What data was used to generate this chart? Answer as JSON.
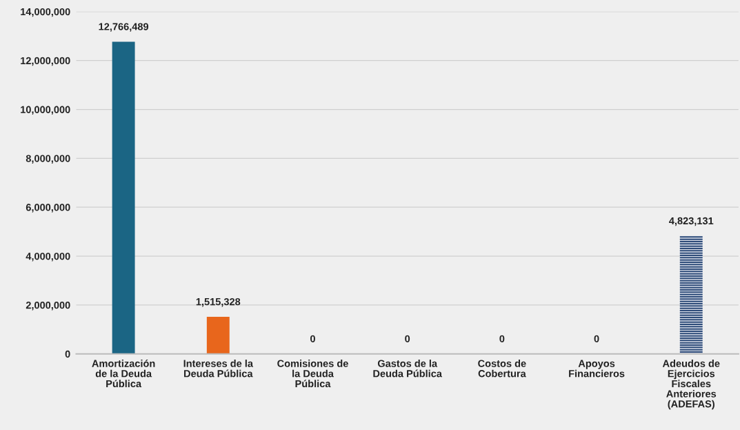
{
  "chart_data": {
    "type": "bar",
    "categories": [
      "Amortización\nde la Deuda\nPública",
      "Intereses de la\nDeuda Pública",
      "Comisiones de\nla Deuda\nPública",
      "Gastos de la\nDeuda Pública",
      "Costos de\nCobertura",
      "Apoyos\nFinancieros",
      "Adeudos de\nEjercicios\nFiscales\nAnteriores\n(ADEFAS)"
    ],
    "values": [
      12766489,
      1515328,
      0,
      0,
      0,
      0,
      4823131
    ],
    "colors": [
      "#1b6584",
      "#e8661c",
      "#1b6584",
      "#1b6584",
      "#1b6584",
      "#1b6584",
      "#2c4a78"
    ],
    "value_labels": [
      "12,766,489",
      "1,515,328",
      "0",
      "0",
      "0",
      "0",
      "4,823,131"
    ],
    "ylim": [
      0,
      14000000
    ],
    "yticks": [
      {
        "value": 0,
        "label": "0"
      },
      {
        "value": 2000000,
        "label": "2,000,000"
      },
      {
        "value": 4000000,
        "label": "4,000,000"
      },
      {
        "value": 6000000,
        "label": "6,000,000"
      },
      {
        "value": 8000000,
        "label": "8,000,000"
      },
      {
        "value": 10000000,
        "label": "10,000,000"
      },
      {
        "value": 12000000,
        "label": "12,000,000"
      },
      {
        "value": 14000000,
        "label": "14,000,000"
      }
    ],
    "grid": "y"
  }
}
